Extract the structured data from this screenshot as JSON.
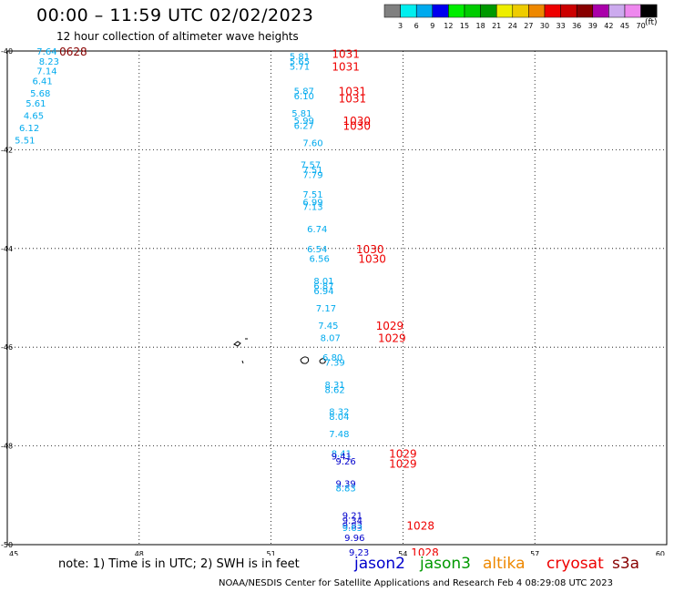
{
  "header": {
    "title": "00:00 – 11:59 UTC 02/02/2023",
    "subtitle": "12 hour collection of altimeter wave heights"
  },
  "legend": {
    "colors": [
      "#808080",
      "#00eeee",
      "#00aaee",
      "#0000ee",
      "#00ee00",
      "#00cc00",
      "#009900",
      "#eeee00",
      "#eecc00",
      "#ee8800",
      "#ee0000",
      "#cc0000",
      "#880000",
      "#aa00aa",
      "#ccaaee",
      "#ee88ee",
      "#000000"
    ],
    "labels": [
      "3",
      "6",
      "9",
      "12",
      "15",
      "18",
      "21",
      "24",
      "27",
      "30",
      "33",
      "36",
      "39",
      "42",
      "45",
      "70"
    ],
    "unit": "(ft)"
  },
  "chart_data": {
    "type": "scatter",
    "x_ticks": [
      "45",
      "48",
      "51",
      "54",
      "57",
      "60"
    ],
    "y_ticks": [
      "-40",
      "-42",
      "-44",
      "-46",
      "-48",
      "-50"
    ],
    "xlim": [
      45,
      60
    ],
    "ylim": [
      -50,
      -40
    ],
    "grid": true,
    "points": [
      {
        "lon": 45.9,
        "lat": -40.0,
        "v": "7.64",
        "c": "#00aaee"
      },
      {
        "lon": 45.95,
        "lat": -40.2,
        "v": "8.23",
        "c": "#00aaee"
      },
      {
        "lon": 45.9,
        "lat": -40.4,
        "v": "7.14",
        "c": "#00aaee"
      },
      {
        "lon": 45.8,
        "lat": -40.6,
        "v": "6.41",
        "c": "#00aaee"
      },
      {
        "lon": 45.75,
        "lat": -40.85,
        "v": "5.68",
        "c": "#00aaee"
      },
      {
        "lon": 45.65,
        "lat": -41.05,
        "v": "5.61",
        "c": "#00aaee"
      },
      {
        "lon": 45.6,
        "lat": -41.3,
        "v": "4.65",
        "c": "#00aaee"
      },
      {
        "lon": 45.5,
        "lat": -41.55,
        "v": "6.12",
        "c": "#00aaee"
      },
      {
        "lon": 45.4,
        "lat": -41.8,
        "v": "5.51",
        "c": "#00aaee"
      },
      {
        "lon": 51.65,
        "lat": -40.1,
        "v": "5.81",
        "c": "#00aaee"
      },
      {
        "lon": 51.65,
        "lat": -40.2,
        "v": "5.65",
        "c": "#00aaee"
      },
      {
        "lon": 51.65,
        "lat": -40.3,
        "v": "5.71",
        "c": "#00aaee"
      },
      {
        "lon": 51.75,
        "lat": -40.8,
        "v": "5.87",
        "c": "#00aaee"
      },
      {
        "lon": 51.75,
        "lat": -40.9,
        "v": "6.10",
        "c": "#00aaee"
      },
      {
        "lon": 51.7,
        "lat": -41.25,
        "v": "5.81",
        "c": "#00aaee"
      },
      {
        "lon": 51.75,
        "lat": -41.4,
        "v": "5.99",
        "c": "#00aaee"
      },
      {
        "lon": 51.75,
        "lat": -41.5,
        "v": "6.27",
        "c": "#00aaee"
      },
      {
        "lon": 51.95,
        "lat": -41.85,
        "v": "7.60",
        "c": "#00aaee"
      },
      {
        "lon": 51.9,
        "lat": -42.3,
        "v": "7.57",
        "c": "#00aaee"
      },
      {
        "lon": 51.95,
        "lat": -42.4,
        "v": "7.51",
        "c": "#00aaee"
      },
      {
        "lon": 51.95,
        "lat": -42.5,
        "v": "7.79",
        "c": "#00aaee"
      },
      {
        "lon": 51.95,
        "lat": -42.9,
        "v": "7.51",
        "c": "#00aaee"
      },
      {
        "lon": 51.95,
        "lat": -43.05,
        "v": "6.99",
        "c": "#00aaee"
      },
      {
        "lon": 51.95,
        "lat": -43.15,
        "v": "7.13",
        "c": "#00aaee"
      },
      {
        "lon": 52.05,
        "lat": -43.6,
        "v": "6.74",
        "c": "#00aaee"
      },
      {
        "lon": 52.05,
        "lat": -44.0,
        "v": "6.54",
        "c": "#00aaee"
      },
      {
        "lon": 52.1,
        "lat": -44.2,
        "v": "6.56",
        "c": "#00aaee"
      },
      {
        "lon": 52.2,
        "lat": -44.65,
        "v": "8.01",
        "c": "#00aaee"
      },
      {
        "lon": 52.2,
        "lat": -44.75,
        "v": "6.87",
        "c": "#00aaee"
      },
      {
        "lon": 52.2,
        "lat": -44.85,
        "v": "6.94",
        "c": "#00aaee"
      },
      {
        "lon": 52.25,
        "lat": -45.2,
        "v": "7.17",
        "c": "#00aaee"
      },
      {
        "lon": 52.3,
        "lat": -45.55,
        "v": "7.45",
        "c": "#00aaee"
      },
      {
        "lon": 52.35,
        "lat": -45.8,
        "v": "8.07",
        "c": "#00aaee"
      },
      {
        "lon": 52.4,
        "lat": -46.2,
        "v": "6.80",
        "c": "#00aaee"
      },
      {
        "lon": 52.45,
        "lat": -46.3,
        "v": "7.39",
        "c": "#00aaee"
      },
      {
        "lon": 52.45,
        "lat": -46.75,
        "v": "8.31",
        "c": "#00aaee"
      },
      {
        "lon": 52.45,
        "lat": -46.85,
        "v": "8.62",
        "c": "#00aaee"
      },
      {
        "lon": 52.55,
        "lat": -47.3,
        "v": "8.32",
        "c": "#00aaee"
      },
      {
        "lon": 52.55,
        "lat": -47.4,
        "v": "8.04",
        "c": "#00aaee"
      },
      {
        "lon": 52.55,
        "lat": -47.75,
        "v": "7.48",
        "c": "#00aaee"
      },
      {
        "lon": 52.6,
        "lat": -48.15,
        "v": "8.41",
        "c": "#00aaee"
      },
      {
        "lon": 52.6,
        "lat": -48.2,
        "v": "9.41",
        "c": "#0000cc"
      },
      {
        "lon": 52.7,
        "lat": -48.3,
        "v": "9.26",
        "c": "#0000cc"
      },
      {
        "lon": 52.7,
        "lat": -48.75,
        "v": "9.39",
        "c": "#0000cc"
      },
      {
        "lon": 52.7,
        "lat": -48.85,
        "v": "8.83",
        "c": "#00aaee"
      },
      {
        "lon": 52.85,
        "lat": -49.4,
        "v": "9.21",
        "c": "#0000cc"
      },
      {
        "lon": 52.85,
        "lat": -49.5,
        "v": "9.34",
        "c": "#0000cc"
      },
      {
        "lon": 52.85,
        "lat": -49.6,
        "v": "9.83",
        "c": "#0000cc"
      },
      {
        "lon": 52.85,
        "lat": -49.65,
        "v": "9.63",
        "c": "#00aaee"
      },
      {
        "lon": 52.9,
        "lat": -49.85,
        "v": "9.96",
        "c": "#0000cc"
      },
      {
        "lon": 53.0,
        "lat": -50.15,
        "v": "9.23",
        "c": "#0000cc"
      }
    ],
    "time_labels": [
      {
        "lon": 46.5,
        "lat": -40.0,
        "v": "0628",
        "c": "#880000"
      },
      {
        "lon": 52.7,
        "lat": -40.05,
        "v": "1031",
        "c": "#ee0000"
      },
      {
        "lon": 52.7,
        "lat": -40.3,
        "v": "1031",
        "c": "#ee0000"
      },
      {
        "lon": 52.85,
        "lat": -40.8,
        "v": "1031",
        "c": "#ee0000"
      },
      {
        "lon": 52.85,
        "lat": -40.95,
        "v": "1031",
        "c": "#ee0000"
      },
      {
        "lon": 52.95,
        "lat": -41.4,
        "v": "1030",
        "c": "#ee0000"
      },
      {
        "lon": 52.95,
        "lat": -41.5,
        "v": "1030",
        "c": "#ee0000"
      },
      {
        "lon": 53.25,
        "lat": -44.0,
        "v": "1030",
        "c": "#ee0000"
      },
      {
        "lon": 53.3,
        "lat": -44.2,
        "v": "1030",
        "c": "#ee0000"
      },
      {
        "lon": 53.7,
        "lat": -45.55,
        "v": "1029",
        "c": "#ee0000"
      },
      {
        "lon": 53.75,
        "lat": -45.8,
        "v": "1029",
        "c": "#ee0000"
      },
      {
        "lon": 54.0,
        "lat": -48.15,
        "v": "1029",
        "c": "#ee0000"
      },
      {
        "lon": 54.0,
        "lat": -48.35,
        "v": "1029",
        "c": "#ee0000"
      },
      {
        "lon": 54.4,
        "lat": -49.6,
        "v": "1028",
        "c": "#ee0000"
      },
      {
        "lon": 54.5,
        "lat": -50.15,
        "v": "1028",
        "c": "#ee0000"
      }
    ]
  },
  "footer": {
    "note": "note: 1) Time is in UTC; 2) SWH is in feet",
    "satellites": [
      {
        "name": "jason2",
        "color": "#0000cc"
      },
      {
        "name": "jason3",
        "color": "#009900"
      },
      {
        "name": "altika",
        "color": "#ee8800"
      },
      {
        "name": "cryosat",
        "color": "#ee0000"
      },
      {
        "name": "s3a",
        "color": "#880000"
      }
    ],
    "credit": "NOAA/NESDIS Center for Satellite Applications and Research   Feb  4 08:29:08 UTC 2023"
  }
}
